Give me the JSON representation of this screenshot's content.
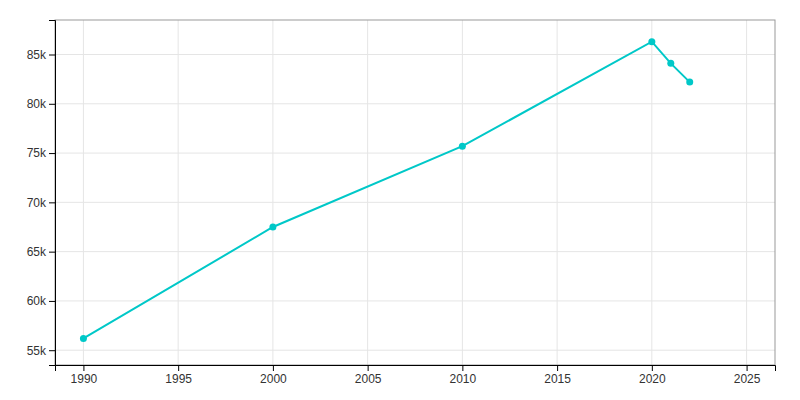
{
  "chart_data": {
    "type": "line",
    "x": [
      1990,
      2000,
      2010,
      2020,
      2021,
      2022
    ],
    "values": [
      56200,
      67500,
      75700,
      86300,
      84100,
      82200
    ],
    "color": "#00C8C8",
    "marker": "circle",
    "xlim": [
      1988.5,
      2026.5
    ],
    "ylim": [
      53500,
      88500
    ],
    "xticks": [
      1990,
      1995,
      2000,
      2005,
      2010,
      2015,
      2020,
      2025
    ],
    "yticks": [
      {
        "value": 55000,
        "label": "55k"
      },
      {
        "value": 60000,
        "label": "60k"
      },
      {
        "value": 65000,
        "label": "65k"
      },
      {
        "value": 70000,
        "label": "70k"
      },
      {
        "value": 75000,
        "label": "75k"
      },
      {
        "value": 80000,
        "label": "80k"
      },
      {
        "value": 85000,
        "label": "85k"
      }
    ],
    "grid": true
  }
}
